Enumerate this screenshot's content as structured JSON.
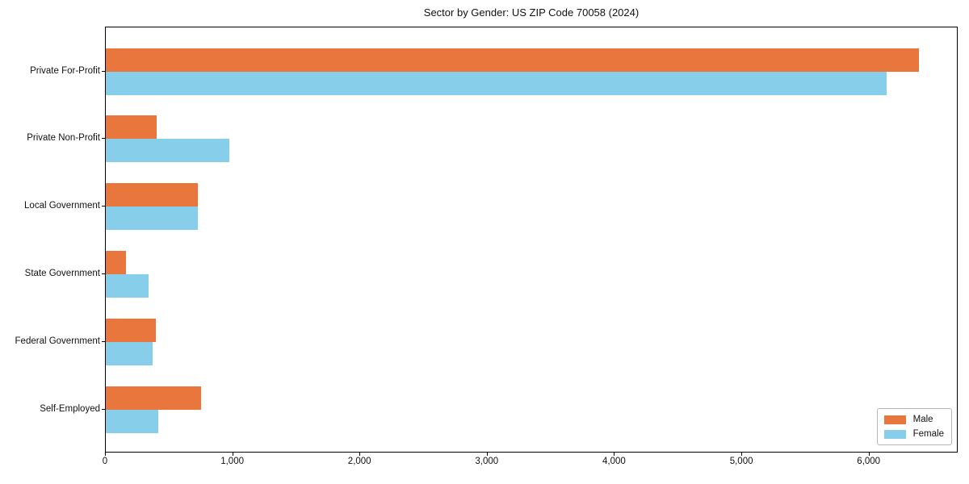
{
  "title": "Sector by Gender: US ZIP Code 70058 (2024)",
  "colors": {
    "male": "#e8763d",
    "female": "#87ceeb",
    "axis": "#000000",
    "background": "#ffffff",
    "legend_border": "#b7b7b7"
  },
  "legend": {
    "position": "lower right",
    "items": [
      {
        "label": "Male",
        "color": "#e8763d"
      },
      {
        "label": "Female",
        "color": "#87ceeb"
      }
    ]
  },
  "chart_data": {
    "type": "bar",
    "orientation": "horizontal",
    "title": "Sector by Gender: US ZIP Code 70058 (2024)",
    "categories": [
      "Private For-Profit",
      "Private Non-Profit",
      "Local Government",
      "State Government",
      "Federal Government",
      "Self-Employed"
    ],
    "series": [
      {
        "name": "Male",
        "color": "#e8763d",
        "values": [
          6390,
          400,
          725,
          160,
          390,
          750
        ]
      },
      {
        "name": "Female",
        "color": "#87ceeb",
        "values": [
          6135,
          970,
          725,
          335,
          370,
          415
        ]
      }
    ],
    "xlabel": "",
    "ylabel": "",
    "xlim": [
      0,
      6700
    ],
    "xticks": [
      0,
      1000,
      2000,
      3000,
      4000,
      5000,
      6000
    ],
    "xtick_labels": [
      "0",
      "1,000",
      "2,000",
      "3,000",
      "4,000",
      "5,000",
      "6,000"
    ],
    "grid": false,
    "legend_position": "lower right"
  }
}
